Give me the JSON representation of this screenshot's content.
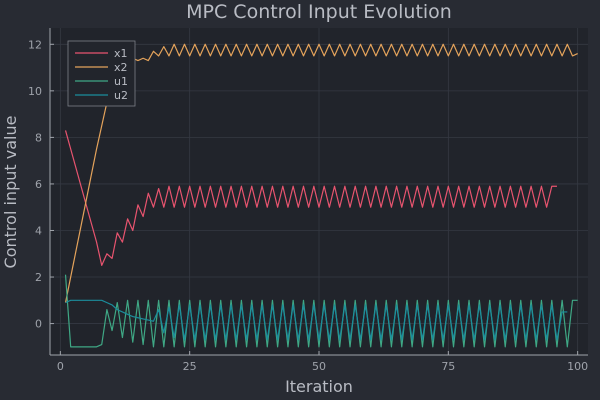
{
  "chart_data": {
    "type": "line",
    "title": "MPC Control Input Evolution",
    "xlabel": "Iteration",
    "ylabel": "Control input value",
    "xlim": [
      -2,
      102
    ],
    "ylim": [
      -1.35,
      12.7
    ],
    "xticks": [
      0,
      25,
      50,
      75,
      100
    ],
    "yticks": [
      0,
      2,
      4,
      6,
      8,
      10,
      12
    ],
    "grid": true,
    "legend_position": "top-left",
    "series": [
      {
        "name": "x1",
        "color": "#e8546f",
        "values": [
          8.3,
          7.5,
          6.7,
          5.9,
          5.1,
          4.3,
          3.5,
          2.5,
          3.0,
          2.8,
          3.9,
          3.5,
          4.5,
          4.0,
          5.1,
          4.6,
          5.6,
          5.0,
          5.8,
          5.0,
          5.9,
          5.0,
          5.9,
          5.0,
          5.9,
          5.0,
          5.9,
          5.0,
          5.9,
          5.0,
          5.9,
          5.0,
          5.9,
          5.0,
          5.9,
          5.0,
          5.9,
          5.0,
          5.9,
          5.0,
          5.9,
          5.0,
          5.9,
          5.0,
          5.9,
          5.0,
          5.9,
          5.0,
          5.9,
          5.0,
          5.9,
          5.0,
          5.9,
          5.0,
          5.9,
          5.0,
          5.9,
          5.0,
          5.9,
          5.0,
          5.9,
          5.0,
          5.9,
          5.0,
          5.9,
          5.0,
          5.9,
          5.0,
          5.9,
          5.0,
          5.9,
          5.0,
          5.9,
          5.0,
          5.9,
          5.0,
          5.9,
          5.0,
          5.9,
          5.0,
          5.9,
          5.0,
          5.9,
          5.0,
          5.9,
          5.0,
          5.9,
          5.0,
          5.9,
          5.0,
          5.9,
          5.0,
          5.9,
          5.0,
          5.9,
          5.9
        ]
      },
      {
        "name": "x2",
        "color": "#e4a35b",
        "values": [
          0.9,
          2.0,
          3.1,
          4.2,
          5.3,
          6.4,
          7.5,
          8.5,
          9.5,
          10.3,
          11.0,
          11.3,
          11.5,
          11.4,
          11.3,
          11.4,
          11.3,
          11.7,
          11.5,
          11.9,
          11.5,
          12.0,
          11.5,
          12.0,
          11.5,
          12.0,
          11.5,
          12.0,
          11.5,
          12.0,
          11.5,
          12.0,
          11.5,
          12.0,
          11.5,
          12.0,
          11.5,
          12.0,
          11.5,
          12.0,
          11.5,
          12.0,
          11.5,
          12.0,
          11.5,
          12.0,
          11.5,
          12.0,
          11.5,
          12.0,
          11.5,
          12.0,
          11.5,
          12.0,
          11.5,
          12.0,
          11.5,
          12.0,
          11.5,
          12.0,
          11.5,
          12.0,
          11.5,
          12.0,
          11.5,
          12.0,
          11.5,
          12.0,
          11.5,
          12.0,
          11.5,
          12.0,
          11.5,
          12.0,
          11.5,
          12.0,
          11.5,
          12.0,
          11.5,
          12.0,
          11.5,
          12.0,
          11.5,
          12.0,
          11.5,
          12.0,
          11.5,
          12.0,
          11.5,
          12.0,
          11.5,
          12.0,
          11.5,
          12.0,
          11.5,
          12.0,
          11.5,
          12.0,
          11.5,
          11.6
        ]
      },
      {
        "name": "u1",
        "color": "#3fa885",
        "values": [
          2.1,
          -1.0,
          -1.0,
          -1.0,
          -1.0,
          -1.0,
          -1.0,
          -0.9,
          0.6,
          -0.3,
          0.9,
          -0.6,
          1.0,
          -0.8,
          1.0,
          -0.9,
          1.0,
          -1.0,
          1.0,
          -1.0,
          1.0,
          -1.0,
          1.0,
          -1.0,
          1.0,
          -1.0,
          1.0,
          -1.0,
          1.0,
          -1.0,
          1.0,
          -1.0,
          1.0,
          -1.0,
          1.0,
          -1.0,
          1.0,
          -1.0,
          1.0,
          -1.0,
          1.0,
          -1.0,
          1.0,
          -1.0,
          1.0,
          -1.0,
          1.0,
          -1.0,
          1.0,
          -1.0,
          1.0,
          -1.0,
          1.0,
          -1.0,
          1.0,
          -1.0,
          1.0,
          -1.0,
          1.0,
          -1.0,
          1.0,
          -1.0,
          1.0,
          -1.0,
          1.0,
          -1.0,
          1.0,
          -1.0,
          1.0,
          -1.0,
          1.0,
          -1.0,
          1.0,
          -1.0,
          1.0,
          -1.0,
          1.0,
          -1.0,
          1.0,
          -1.0,
          1.0,
          -1.0,
          1.0,
          -1.0,
          1.0,
          -1.0,
          1.0,
          -1.0,
          1.0,
          -1.0,
          1.0,
          -1.0,
          1.0,
          -1.0,
          1.0,
          -1.0,
          1.0,
          -1.0,
          1.0,
          1.0
        ]
      },
      {
        "name": "u2",
        "color": "#1b8d9c",
        "values": [
          0.9,
          1.0,
          1.0,
          1.0,
          1.0,
          1.0,
          1.0,
          1.0,
          0.9,
          0.8,
          0.6,
          0.5,
          0.4,
          0.3,
          0.25,
          0.2,
          0.15,
          0.1,
          0.6,
          -0.4,
          0.7,
          -0.6,
          0.8,
          -0.7,
          0.8,
          -0.7,
          0.8,
          -0.7,
          0.8,
          -0.7,
          0.8,
          -0.7,
          0.8,
          -0.7,
          0.8,
          -0.7,
          0.8,
          -0.7,
          0.8,
          -0.7,
          0.8,
          -0.7,
          0.8,
          -0.7,
          0.8,
          -0.7,
          0.8,
          -0.7,
          0.8,
          -0.7,
          0.8,
          -0.7,
          0.8,
          -0.7,
          0.8,
          -0.7,
          0.8,
          -0.7,
          0.8,
          -0.7,
          0.8,
          -0.7,
          0.8,
          -0.7,
          0.8,
          -0.7,
          0.8,
          -0.7,
          0.8,
          -0.7,
          0.8,
          -0.7,
          0.8,
          -0.7,
          0.8,
          -0.7,
          0.8,
          -0.7,
          0.8,
          -0.7,
          0.8,
          -0.7,
          0.8,
          -0.7,
          0.8,
          -0.7,
          0.8,
          -0.7,
          0.8,
          -0.7,
          0.8,
          -0.7,
          0.8,
          -0.7,
          0.8,
          -0.7,
          0.5,
          0.5
        ]
      }
    ]
  }
}
